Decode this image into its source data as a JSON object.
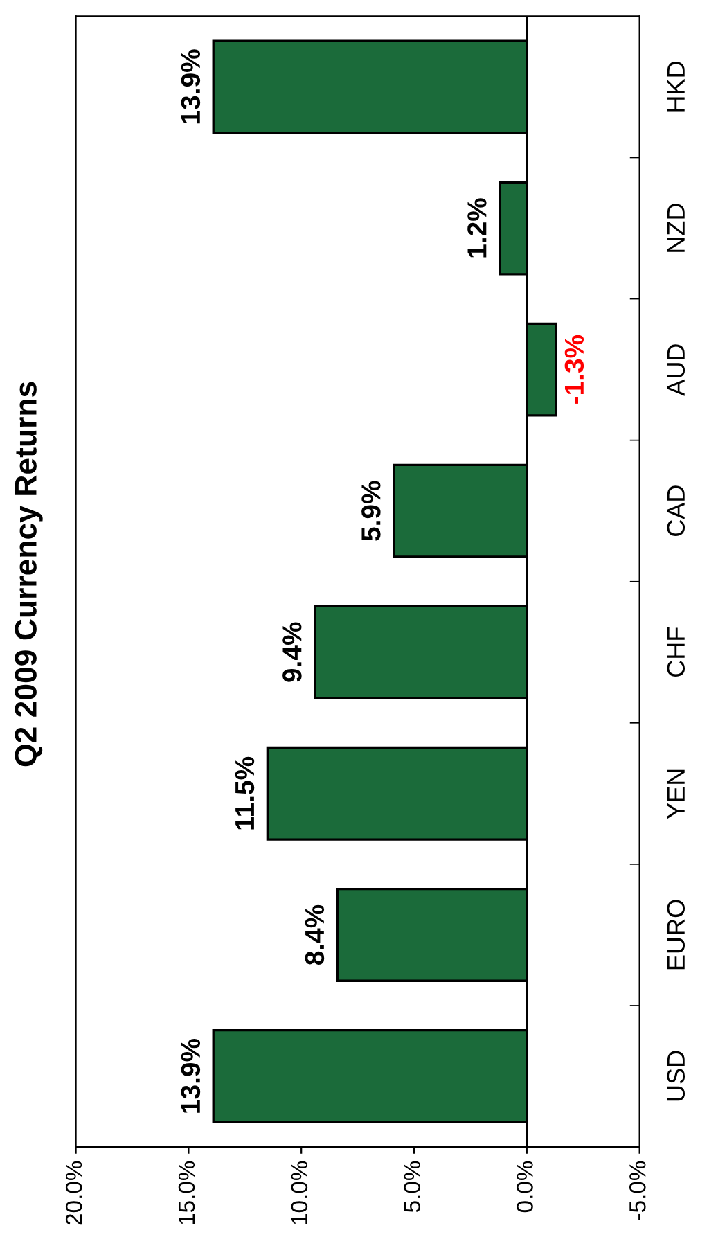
{
  "chart_data": {
    "type": "bar",
    "orientation": "horizontal",
    "title": "Q2 2009 Currency Returns",
    "categories": [
      "HKD",
      "NZD",
      "AUD",
      "CAD",
      "CHF",
      "YEN",
      "EURO",
      "USD"
    ],
    "values": [
      13.9,
      1.2,
      -1.3,
      5.9,
      9.4,
      11.5,
      8.4,
      13.9
    ],
    "value_labels": [
      "13.9%",
      "1.2%",
      "-1.3%",
      "5.9%",
      "9.4%",
      "11.5%",
      "8.4%",
      "13.9%"
    ],
    "color": "#1b6b3a",
    "xlim": [
      20,
      -5
    ],
    "xticks": [
      {
        "value": 20,
        "label": "20.0%"
      },
      {
        "value": 15,
        "label": "15.0%"
      },
      {
        "value": 10,
        "label": "10.0%"
      },
      {
        "value": 5,
        "label": "5.0%"
      },
      {
        "value": 0,
        "label": "0.0%"
      },
      {
        "value": -5,
        "label": "-5.0%"
      }
    ],
    "ref_lines": [
      {
        "axis": "x",
        "value": 0,
        "color": "#000000"
      }
    ],
    "grid": false,
    "legend": false
  }
}
